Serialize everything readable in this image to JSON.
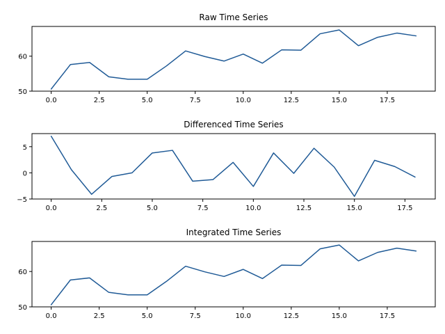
{
  "chart_data": [
    {
      "type": "line",
      "title": "Raw Time Series",
      "xlabel": "",
      "ylabel": "",
      "x": [
        0,
        1,
        2,
        3,
        4,
        5,
        6,
        7,
        8,
        9,
        10,
        11,
        12,
        13,
        14,
        15,
        16,
        17,
        18,
        19
      ],
      "series": [
        {
          "values": [
            50.6,
            57.6,
            58.2,
            54.1,
            53.4,
            53.4,
            57.2,
            61.5,
            59.9,
            58.6,
            60.6,
            58.0,
            61.8,
            61.7,
            66.4,
            67.5,
            63.0,
            65.4,
            66.6,
            65.8
          ]
        }
      ],
      "xlim": [
        -1.0,
        20.0
      ],
      "ylim": [
        50,
        68.5
      ],
      "xticks": [
        0.0,
        2.5,
        5.0,
        7.5,
        10.0,
        12.5,
        15.0,
        17.5
      ],
      "xtick_labels": [
        "0.0",
        "2.5",
        "5.0",
        "7.5",
        "10.0",
        "12.5",
        "15.0",
        "17.5"
      ],
      "yticks": [
        50,
        60
      ],
      "ytick_labels": [
        "50",
        "60"
      ],
      "grid": false,
      "color": "#1f5a96"
    },
    {
      "type": "line",
      "title": "Differenced Time Series",
      "xlabel": "",
      "ylabel": "",
      "x": [
        0,
        1,
        2,
        3,
        4,
        5,
        6,
        7,
        8,
        9,
        10,
        11,
        12,
        13,
        14,
        15,
        16,
        17,
        18
      ],
      "series": [
        {
          "values": [
            7.0,
            0.6,
            -4.1,
            -0.7,
            0.0,
            3.8,
            4.3,
            -1.6,
            -1.3,
            2.0,
            -2.6,
            3.8,
            -0.1,
            4.7,
            1.1,
            -4.5,
            2.4,
            1.2,
            -0.8
          ]
        }
      ],
      "xlim": [
        -0.95,
        19.0
      ],
      "ylim": [
        -5,
        7.5
      ],
      "xticks": [
        0.0,
        2.5,
        5.0,
        7.5,
        10.0,
        12.5,
        15.0,
        17.5
      ],
      "xtick_labels": [
        "0.0",
        "2.5",
        "5.0",
        "7.5",
        "10.0",
        "12.5",
        "15.0",
        "17.5"
      ],
      "yticks": [
        -5,
        0,
        5
      ],
      "ytick_labels": [
        "−5",
        "0",
        "5"
      ],
      "grid": false,
      "color": "#1f5a96"
    },
    {
      "type": "line",
      "title": "Integrated Time Series",
      "xlabel": "",
      "ylabel": "",
      "x": [
        0,
        1,
        2,
        3,
        4,
        5,
        6,
        7,
        8,
        9,
        10,
        11,
        12,
        13,
        14,
        15,
        16,
        17,
        18,
        19
      ],
      "series": [
        {
          "values": [
            50.6,
            57.6,
            58.2,
            54.1,
            53.4,
            53.4,
            57.2,
            61.5,
            59.9,
            58.6,
            60.6,
            58.0,
            61.8,
            61.7,
            66.4,
            67.5,
            63.0,
            65.4,
            66.6,
            65.8
          ]
        }
      ],
      "xlim": [
        -1.0,
        20.0
      ],
      "ylim": [
        50,
        68.5
      ],
      "xticks": [
        0.0,
        2.5,
        5.0,
        7.5,
        10.0,
        12.5,
        15.0,
        17.5
      ],
      "xtick_labels": [
        "0.0",
        "2.5",
        "5.0",
        "7.5",
        "10.0",
        "12.5",
        "15.0",
        "17.5"
      ],
      "yticks": [
        50,
        60
      ],
      "ytick_labels": [
        "50",
        "60"
      ],
      "grid": false,
      "color": "#1f5a96"
    }
  ]
}
